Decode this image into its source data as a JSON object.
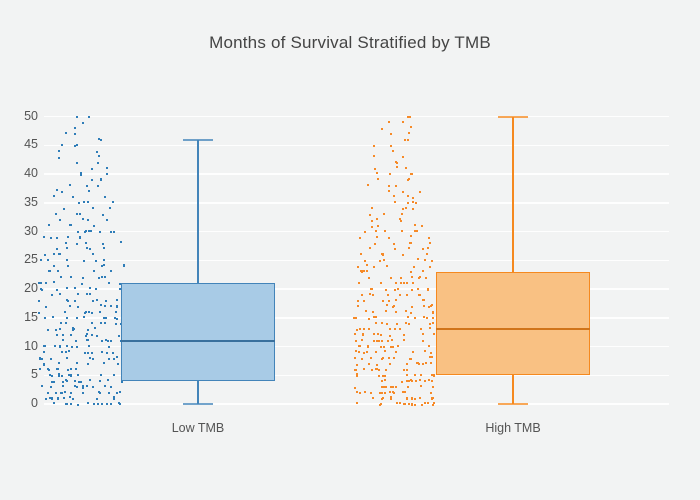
{
  "chart_data": {
    "type": "box",
    "title": "Months of Survival Stratified by TMB",
    "xlabel": "",
    "ylabel": "",
    "categories": [
      "Low TMB",
      "High TMB"
    ],
    "ylim": [
      0,
      50
    ],
    "yticks": [
      0,
      5,
      10,
      15,
      20,
      25,
      30,
      35,
      40,
      45,
      50
    ],
    "grid": true,
    "legend": "none",
    "style": {
      "background_color": "#f2f3f3",
      "gridline_color": "#ffffff",
      "title_color": "#444444",
      "tick_label_color": "#545454"
    },
    "series": [
      {
        "name": "Low TMB",
        "line_color": "#4384b9",
        "fill_color": "#a8cbe6",
        "point_color": "#2f7db8",
        "box": {
          "min": 0,
          "q1": 4,
          "median": 11,
          "q3": 21,
          "max": 46
        },
        "points_per_value": [
          13,
          12,
          12,
          11,
          12,
          11,
          10,
          11,
          10,
          10,
          10,
          9,
          9,
          9,
          8,
          9,
          8,
          8,
          8,
          7,
          8,
          7,
          6,
          6,
          6,
          6,
          5,
          5,
          5,
          6,
          8,
          4,
          4,
          4,
          3,
          4,
          3,
          3,
          3,
          3,
          4,
          2,
          2,
          2,
          2,
          3,
          2,
          2,
          1,
          1,
          2
        ]
      },
      {
        "name": "High TMB",
        "line_color": "#f5891f",
        "fill_color": "#f9c183",
        "point_color": "#f68a28",
        "box": {
          "min": 0,
          "q1": 5,
          "median": 13,
          "q3": 23,
          "max": 50
        },
        "points_per_value": [
          16,
          14,
          13,
          12,
          12,
          12,
          11,
          11,
          11,
          10,
          11,
          10,
          10,
          10,
          9,
          10,
          9,
          9,
          8,
          8,
          9,
          7,
          7,
          7,
          6,
          6,
          6,
          5,
          5,
          5,
          6,
          4,
          4,
          4,
          4,
          4,
          3,
          3,
          3,
          3,
          4,
          3,
          2,
          2,
          2,
          2,
          2,
          2,
          2,
          2,
          2
        ]
      }
    ]
  }
}
